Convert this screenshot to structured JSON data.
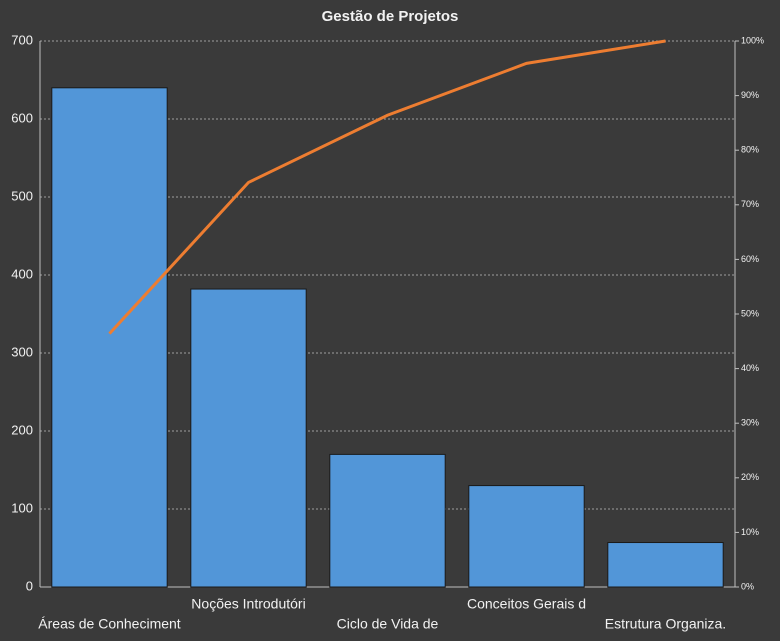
{
  "chart_data": {
    "type": "pareto",
    "title": "Gestão  de  Projetos",
    "categories": [
      "Áreas de Conheciment",
      "Noções Introdutóri",
      "Ciclo de Vida de",
      "Conceitos Gerais d",
      "Estrutura  Organiza."
    ],
    "series": [
      {
        "type": "bar",
        "color": "#5296d8",
        "values": [
          640,
          382,
          170,
          130,
          57
        ]
      },
      {
        "type": "line",
        "axis": "y2",
        "color": "#ed7d31",
        "values": [
          46.4,
          74.1,
          86.4,
          95.9,
          100
        ]
      }
    ],
    "ylim": [
      0,
      700
    ],
    "yticks": [
      0,
      100,
      200,
      300,
      400,
      500,
      600,
      700
    ],
    "y2lim": [
      0,
      100
    ],
    "y2ticks": [
      {
        "value": 0,
        "label": "0%"
      },
      {
        "value": 10,
        "label": "10%"
      },
      {
        "value": 20,
        "label": "20%"
      },
      {
        "value": 30,
        "label": "30%"
      },
      {
        "value": 40,
        "label": "40%"
      },
      {
        "value": 50,
        "label": "50%"
      },
      {
        "value": 60,
        "label": "60%"
      },
      {
        "value": 70,
        "label": "70%"
      },
      {
        "value": 80,
        "label": "80%"
      },
      {
        "value": 90,
        "label": "90%"
      },
      {
        "value": 100,
        "label": "100%"
      }
    ],
    "grid": true
  }
}
